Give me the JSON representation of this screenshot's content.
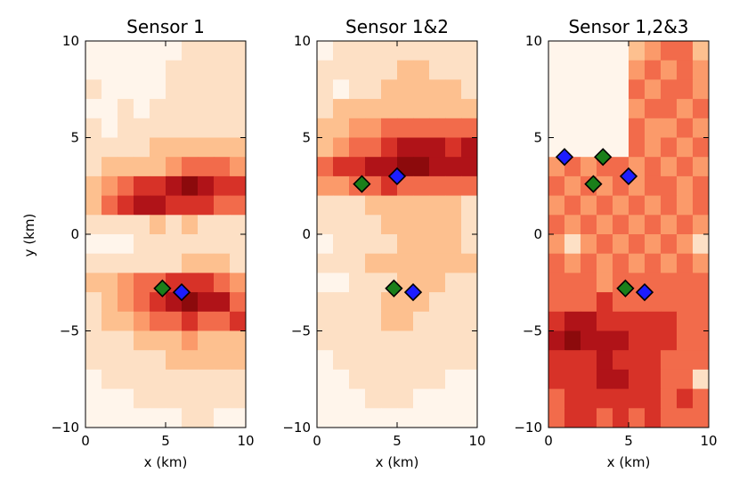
{
  "figure": {
    "ylabel": "y (km)",
    "xlabel": "x (km)",
    "colormap": [
      "#fff5eb",
      "#fde0c5",
      "#fdc08f",
      "#fb9a6a",
      "#f26b4b",
      "#d73228",
      "#b01318",
      "#8c0a0c"
    ],
    "marker_colors": {
      "green": "#1a7f1a",
      "blue": "#1d1dff"
    }
  },
  "chart_data": [
    {
      "type": "heatmap",
      "title": "Sensor 1",
      "xlabel": "x (km)",
      "ylabel": "y (km)",
      "xlim": [
        0,
        10
      ],
      "ylim": [
        -10,
        10
      ],
      "xticks": [
        "0",
        "5",
        "10"
      ],
      "yticks": [
        "−10",
        "−5",
        "0",
        "5",
        "10"
      ],
      "grid_cols": 10,
      "grid_rows": 20,
      "values": [
        [
          0.05,
          0.05,
          0.05,
          0.05,
          0.05,
          0.05,
          0.1,
          0.1,
          0.1,
          0.1
        ],
        [
          0.05,
          0.05,
          0.05,
          0.05,
          0.05,
          0.1,
          0.1,
          0.15,
          0.1,
          0.1
        ],
        [
          0.1,
          0.05,
          0.05,
          0.05,
          0.05,
          0.1,
          0.1,
          0.1,
          0.1,
          0.1
        ],
        [
          0.05,
          0.05,
          0.1,
          0.05,
          0.1,
          0.1,
          0.15,
          0.15,
          0.15,
          0.1
        ],
        [
          0.1,
          0.05,
          0.1,
          0.1,
          0.15,
          0.15,
          0.2,
          0.2,
          0.2,
          0.2
        ],
        [
          0.15,
          0.15,
          0.2,
          0.2,
          0.25,
          0.25,
          0.25,
          0.3,
          0.3,
          0.25
        ],
        [
          0.2,
          0.25,
          0.3,
          0.35,
          0.35,
          0.45,
          0.5,
          0.55,
          0.55,
          0.45
        ],
        [
          0.35,
          0.4,
          0.55,
          0.7,
          0.7,
          0.8,
          0.95,
          0.85,
          0.7,
          0.65
        ],
        [
          0.3,
          0.6,
          0.75,
          0.8,
          0.8,
          0.7,
          0.65,
          0.65,
          0.55,
          0.6
        ],
        [
          0.1,
          0.15,
          0.15,
          0.2,
          0.25,
          0.2,
          0.25,
          0.2,
          0.2,
          0.15
        ],
        [
          0.05,
          0.05,
          0.05,
          0.1,
          0.1,
          0.1,
          0.1,
          0.1,
          0.1,
          0.1
        ],
        [
          0.1,
          0.1,
          0.15,
          0.15,
          0.2,
          0.2,
          0.25,
          0.25,
          0.25,
          0.2
        ],
        [
          0.3,
          0.35,
          0.45,
          0.55,
          0.6,
          0.7,
          0.75,
          0.65,
          0.55,
          0.45
        ],
        [
          0.2,
          0.3,
          0.45,
          0.55,
          0.7,
          0.85,
          0.95,
          0.9,
          0.8,
          0.6
        ],
        [
          0.15,
          0.25,
          0.3,
          0.4,
          0.5,
          0.6,
          0.65,
          0.55,
          0.6,
          0.7
        ],
        [
          0.1,
          0.15,
          0.2,
          0.25,
          0.3,
          0.35,
          0.4,
          0.35,
          0.3,
          0.35
        ],
        [
          0.1,
          0.1,
          0.15,
          0.2,
          0.2,
          0.25,
          0.3,
          0.25,
          0.25,
          0.25
        ],
        [
          0.05,
          0.1,
          0.1,
          0.15,
          0.15,
          0.15,
          0.2,
          0.2,
          0.2,
          0.15
        ],
        [
          0.05,
          0.05,
          0.05,
          0.1,
          0.1,
          0.1,
          0.1,
          0.1,
          0.1,
          0.1
        ],
        [
          0.05,
          0.05,
          0.05,
          0.05,
          0.05,
          0.05,
          0.1,
          0.1,
          0.05,
          0.05
        ]
      ],
      "markers": [
        {
          "x": 4.8,
          "y": -2.8,
          "color": "green"
        },
        {
          "x": 6.0,
          "y": -3.0,
          "color": "blue"
        }
      ]
    },
    {
      "type": "heatmap",
      "title": "Sensor 1&2",
      "xlabel": "x (km)",
      "ylabel": "",
      "xlim": [
        0,
        10
      ],
      "ylim": [
        -10,
        10
      ],
      "xticks": [
        "0",
        "5",
        "10"
      ],
      "yticks": [
        "−10",
        "−5",
        "0",
        "5",
        "10"
      ],
      "grid_cols": 10,
      "grid_rows": 20,
      "values": [
        [
          0.05,
          0.1,
          0.1,
          0.15,
          0.15,
          0.2,
          0.2,
          0.15,
          0.15,
          0.1
        ],
        [
          0.1,
          0.1,
          0.15,
          0.2,
          0.2,
          0.25,
          0.25,
          0.2,
          0.2,
          0.15
        ],
        [
          0.15,
          0.05,
          0.15,
          0.2,
          0.25,
          0.3,
          0.3,
          0.3,
          0.25,
          0.2
        ],
        [
          0.2,
          0.25,
          0.25,
          0.3,
          0.3,
          0.35,
          0.35,
          0.3,
          0.3,
          0.25
        ],
        [
          0.3,
          0.35,
          0.45,
          0.45,
          0.5,
          0.55,
          0.55,
          0.6,
          0.55,
          0.5
        ],
        [
          0.35,
          0.4,
          0.5,
          0.6,
          0.7,
          0.8,
          0.85,
          0.8,
          0.7,
          0.85
        ],
        [
          0.6,
          0.65,
          0.75,
          0.8,
          0.85,
          0.95,
          0.95,
          0.9,
          0.85,
          0.8
        ],
        [
          0.4,
          0.45,
          0.5,
          0.55,
          0.7,
          0.6,
          0.55,
          0.6,
          0.6,
          0.55
        ],
        [
          0.1,
          0.15,
          0.2,
          0.25,
          0.3,
          0.3,
          0.35,
          0.3,
          0.25,
          0.2
        ],
        [
          0.1,
          0.15,
          0.2,
          0.2,
          0.25,
          0.25,
          0.3,
          0.3,
          0.25,
          0.2
        ],
        [
          0.05,
          0.1,
          0.15,
          0.2,
          0.2,
          0.25,
          0.25,
          0.3,
          0.3,
          0.2
        ],
        [
          0.1,
          0.15,
          0.2,
          0.25,
          0.3,
          0.35,
          0.35,
          0.35,
          0.3,
          0.25
        ],
        [
          0.05,
          0.05,
          0.1,
          0.15,
          0.2,
          0.25,
          0.3,
          0.25,
          0.2,
          0.15
        ],
        [
          0.1,
          0.1,
          0.15,
          0.2,
          0.25,
          0.3,
          0.25,
          0.2,
          0.2,
          0.15
        ],
        [
          0.1,
          0.15,
          0.15,
          0.2,
          0.25,
          0.3,
          0.2,
          0.15,
          0.15,
          0.1
        ],
        [
          0.1,
          0.1,
          0.15,
          0.15,
          0.2,
          0.15,
          0.15,
          0.1,
          0.1,
          0.1
        ],
        [
          0.05,
          0.1,
          0.15,
          0.15,
          0.15,
          0.15,
          0.1,
          0.1,
          0.1,
          0.1
        ],
        [
          0.05,
          0.05,
          0.1,
          0.15,
          0.1,
          0.1,
          0.1,
          0.1,
          0.05,
          0.05
        ],
        [
          0.05,
          0.05,
          0.05,
          0.1,
          0.1,
          0.1,
          0.05,
          0.05,
          0.05,
          0.05
        ],
        [
          0.05,
          0.05,
          0.05,
          0.05,
          0.05,
          0.05,
          0.05,
          0.05,
          0.05,
          0.05
        ]
      ],
      "markers": [
        {
          "x": 2.8,
          "y": 2.6,
          "color": "green"
        },
        {
          "x": 5.0,
          "y": 3.0,
          "color": "blue"
        },
        {
          "x": 4.8,
          "y": -2.8,
          "color": "green"
        },
        {
          "x": 6.0,
          "y": -3.0,
          "color": "blue"
        }
      ]
    },
    {
      "type": "heatmap",
      "title": "Sensor 1,2&3",
      "xlabel": "x (km)",
      "ylabel": "",
      "xlim": [
        0,
        10
      ],
      "ylim": [
        -10,
        10
      ],
      "xticks": [
        "0",
        "5",
        "10"
      ],
      "yticks": [
        "−10",
        "−5",
        "0",
        "5",
        "10"
      ],
      "grid_cols": 10,
      "grid_rows": 20,
      "values": [
        [
          0.05,
          0.05,
          0.05,
          0.05,
          0.05,
          0.3,
          0.4,
          0.5,
          0.55,
          0.35
        ],
        [
          0.05,
          0.05,
          0.05,
          0.05,
          0.05,
          0.45,
          0.5,
          0.45,
          0.5,
          0.4
        ],
        [
          0.05,
          0.05,
          0.05,
          0.05,
          0.05,
          0.5,
          0.45,
          0.55,
          0.5,
          0.45
        ],
        [
          0.05,
          0.05,
          0.05,
          0.05,
          0.05,
          0.45,
          0.5,
          0.55,
          0.45,
          0.5
        ],
        [
          0.05,
          0.05,
          0.05,
          0.05,
          0.05,
          0.5,
          0.4,
          0.45,
          0.5,
          0.45
        ],
        [
          0.05,
          0.05,
          0.05,
          0.05,
          0.05,
          0.5,
          0.45,
          0.5,
          0.45,
          0.55
        ],
        [
          0.45,
          0.5,
          0.45,
          0.5,
          0.55,
          0.45,
          0.5,
          0.45,
          0.5,
          0.45
        ],
        [
          0.5,
          0.45,
          0.55,
          0.45,
          0.5,
          0.45,
          0.5,
          0.55,
          0.45,
          0.5
        ],
        [
          0.45,
          0.5,
          0.45,
          0.5,
          0.45,
          0.5,
          0.45,
          0.5,
          0.45,
          0.5
        ],
        [
          0.5,
          0.45,
          0.5,
          0.45,
          0.5,
          0.45,
          0.5,
          0.45,
          0.5,
          0.45
        ],
        [
          0.45,
          0.2,
          0.45,
          0.5,
          0.45,
          0.5,
          0.45,
          0.5,
          0.45,
          0.2
        ],
        [
          0.5,
          0.45,
          0.5,
          0.45,
          0.5,
          0.45,
          0.5,
          0.45,
          0.5,
          0.45
        ],
        [
          0.55,
          0.55,
          0.5,
          0.45,
          0.55,
          0.5,
          0.55,
          0.5,
          0.55,
          0.5
        ],
        [
          0.6,
          0.55,
          0.6,
          0.65,
          0.5,
          0.55,
          0.6,
          0.55,
          0.5,
          0.55
        ],
        [
          0.75,
          0.85,
          0.8,
          0.7,
          0.75,
          0.7,
          0.65,
          0.75,
          0.6,
          0.55
        ],
        [
          0.8,
          0.95,
          0.85,
          0.8,
          0.8,
          0.7,
          0.75,
          0.65,
          0.55,
          0.6
        ],
        [
          0.75,
          0.7,
          0.75,
          0.8,
          0.75,
          0.65,
          0.7,
          0.6,
          0.55,
          0.5
        ],
        [
          0.65,
          0.7,
          0.75,
          0.8,
          0.9,
          0.7,
          0.65,
          0.6,
          0.55,
          0.15
        ],
        [
          0.6,
          0.7,
          0.7,
          0.65,
          0.75,
          0.65,
          0.7,
          0.6,
          0.7,
          0.55
        ],
        [
          0.6,
          0.65,
          0.7,
          0.6,
          0.65,
          0.6,
          0.65,
          0.6,
          0.6,
          0.55
        ]
      ],
      "markers": [
        {
          "x": 1.0,
          "y": 4.0,
          "color": "blue"
        },
        {
          "x": 3.4,
          "y": 4.0,
          "color": "green"
        },
        {
          "x": 2.8,
          "y": 2.6,
          "color": "green"
        },
        {
          "x": 5.0,
          "y": 3.0,
          "color": "blue"
        },
        {
          "x": 4.8,
          "y": -2.8,
          "color": "green"
        },
        {
          "x": 6.0,
          "y": -3.0,
          "color": "blue"
        }
      ]
    }
  ]
}
